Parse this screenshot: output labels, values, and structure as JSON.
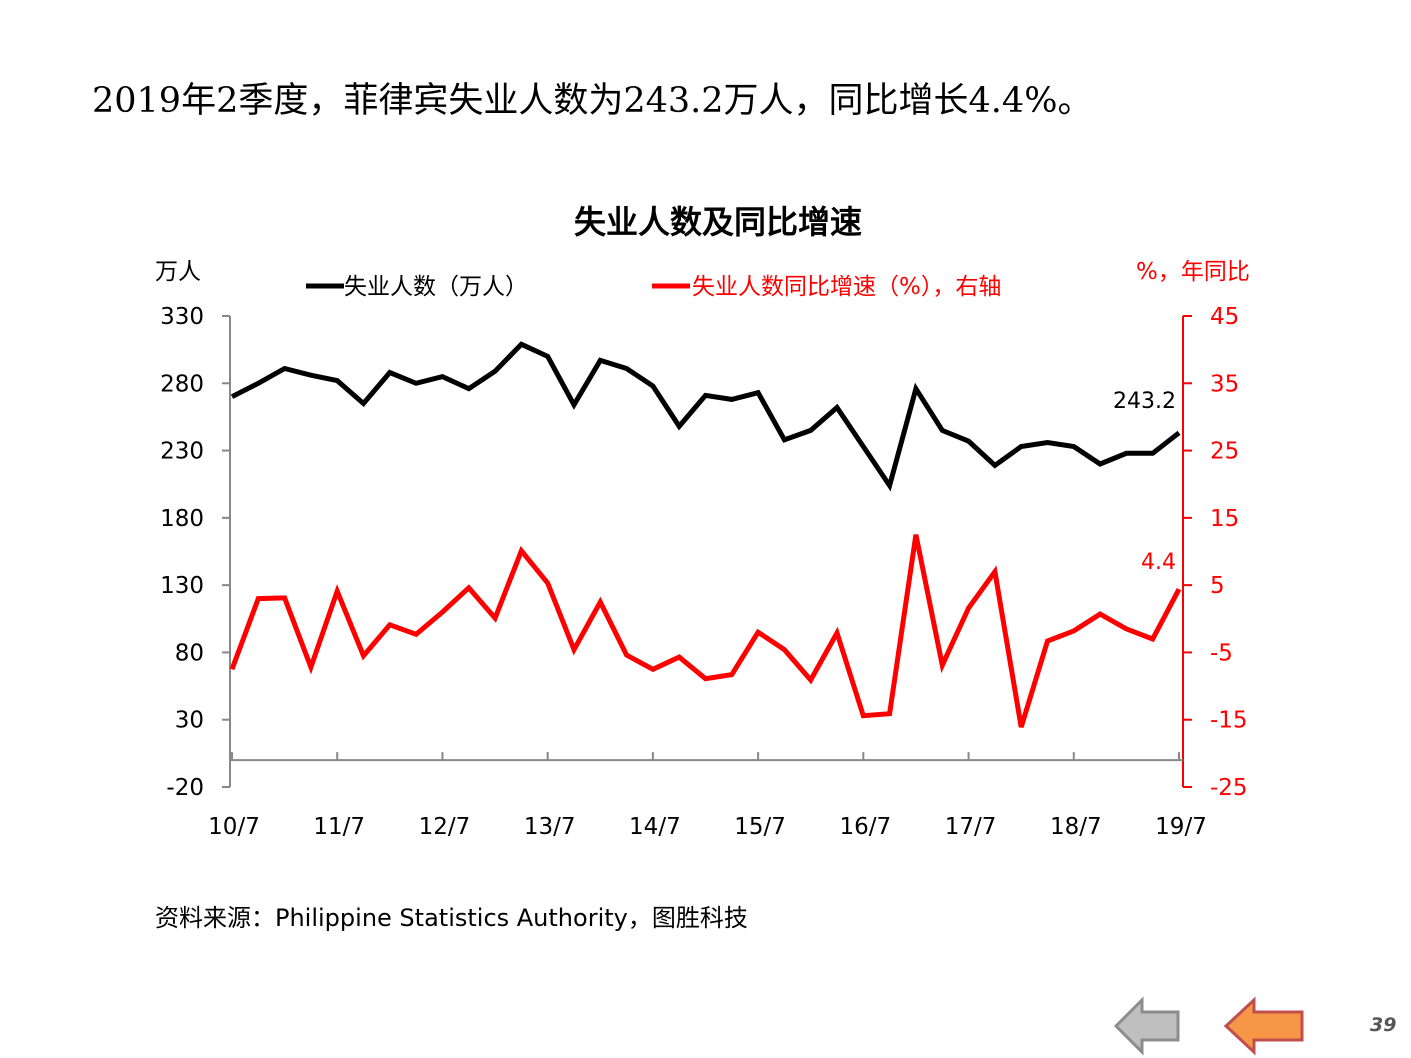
{
  "headline": "2019年2季度，菲律宾失业人数为243.2万人，同比增长4.4%。",
  "source": "资料来源：Philippine Statistics Authority，图胜科技",
  "page_number": "39",
  "navigation": {
    "back_icon": "left-arrow-gray",
    "prev_icon": "left-arrow-orange"
  },
  "chart_data": {
    "type": "line",
    "title": "失业人数及同比增速",
    "left_axis_label": "万人",
    "right_axis_label": "%，年同比",
    "ylim_left": [
      -20,
      330
    ],
    "yticks_left": [
      -20,
      30,
      80,
      130,
      180,
      230,
      280,
      330
    ],
    "ylim_right": [
      -25,
      45
    ],
    "yticks_right": [
      -25,
      -15,
      -5,
      5,
      15,
      25,
      35,
      45
    ],
    "x_tick_labels": [
      "10/7",
      "11/7",
      "12/7",
      "13/7",
      "14/7",
      "15/7",
      "16/7",
      "17/7",
      "18/7",
      "19/7"
    ],
    "legend_position": "top",
    "series": [
      {
        "name": "失业人数（万人）",
        "axis": "left",
        "color": "#000000",
        "values": [
          270,
          280,
          291,
          286,
          282,
          265,
          288,
          280,
          285,
          276,
          289,
          309,
          300,
          264,
          297,
          291,
          278,
          248,
          271,
          268,
          273,
          238,
          245,
          262,
          233,
          204,
          276,
          245,
          237,
          219,
          233,
          236,
          233,
          220,
          228,
          228,
          243.2
        ],
        "end_label": "243.2"
      },
      {
        "name": "失业人数同比增速（%），右轴",
        "axis": "right",
        "color": "#FF0000",
        "values": [
          -7.5,
          3.0,
          3.1,
          -7.2,
          4.1,
          -5.5,
          -0.9,
          -2.3,
          1.0,
          4.6,
          0.1,
          10.1,
          5.3,
          -4.6,
          2.5,
          -5.4,
          -7.5,
          -5.7,
          -8.9,
          -8.3,
          -2.0,
          -4.6,
          -9.1,
          -2.1,
          -14.4,
          -14.1,
          12.5,
          -6.9,
          1.6,
          7.0,
          -16.1,
          -3.3,
          -1.8,
          0.7,
          -1.5,
          -3.0,
          4.4
        ],
        "end_label": "4.4"
      }
    ]
  }
}
